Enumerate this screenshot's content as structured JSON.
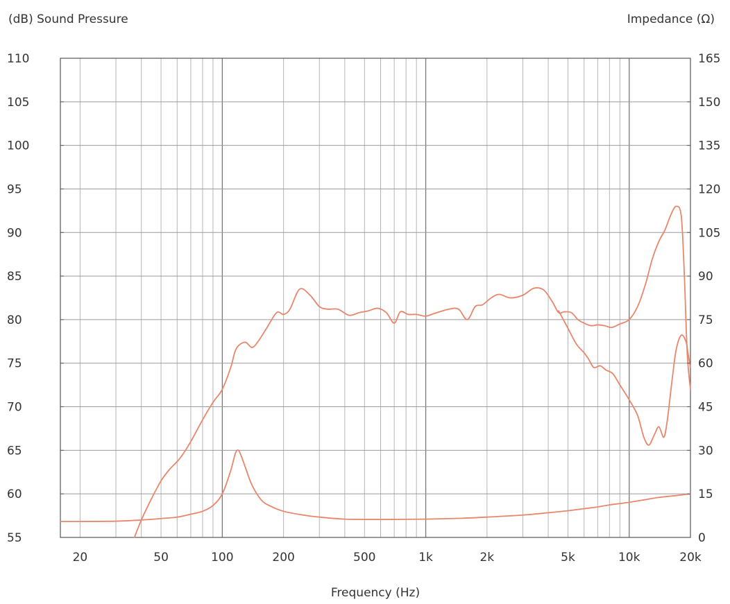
{
  "chart_data": {
    "type": "line",
    "title": "",
    "xlabel": "Frequency (Hz)",
    "ylabel_left": "(dB) Sound Pressure",
    "ylabel_right": "Impedance (Ω)",
    "x_scale": "log",
    "xlim": [
      16,
      20000
    ],
    "ylim_left": [
      55,
      110
    ],
    "ylim_right": [
      0,
      165
    ],
    "grid": true,
    "x_ticks": [
      {
        "value": 20,
        "label": "20"
      },
      {
        "value": 50,
        "label": "50"
      },
      {
        "value": 100,
        "label": "100"
      },
      {
        "value": 200,
        "label": "200"
      },
      {
        "value": 500,
        "label": "500"
      },
      {
        "value": 1000,
        "label": "1k"
      },
      {
        "value": 2000,
        "label": "2k"
      },
      {
        "value": 5000,
        "label": "5k"
      },
      {
        "value": 10000,
        "label": "10k"
      },
      {
        "value": 20000,
        "label": "20k"
      }
    ],
    "y_ticks_left": [
      {
        "value": 110,
        "label": "110"
      },
      {
        "value": 105,
        "label": "105"
      },
      {
        "value": 100,
        "label": "100"
      },
      {
        "value": 95,
        "label": "95"
      },
      {
        "value": 90,
        "label": "90"
      },
      {
        "value": 85,
        "label": "85"
      },
      {
        "value": 80,
        "label": "80"
      },
      {
        "value": 75,
        "label": "75"
      },
      {
        "value": 70,
        "label": "70"
      },
      {
        "value": 65,
        "label": "65"
      },
      {
        "value": 60,
        "label": "60"
      },
      {
        "value": 55,
        "label": "55"
      }
    ],
    "y_ticks_right": [
      {
        "value": 165,
        "label": "165"
      },
      {
        "value": 150,
        "label": "150"
      },
      {
        "value": 135,
        "label": "135"
      },
      {
        "value": 120,
        "label": "120"
      },
      {
        "value": 105,
        "label": "105"
      },
      {
        "value": 90,
        "label": "90"
      },
      {
        "value": 75,
        "label": "75"
      },
      {
        "value": 60,
        "label": "60"
      },
      {
        "value": 45,
        "label": "45"
      },
      {
        "value": 30,
        "label": "30"
      },
      {
        "value": 15,
        "label": "15"
      },
      {
        "value": 0,
        "label": "0"
      }
    ],
    "line_color": "#e8866b",
    "series": [
      {
        "axis": "left",
        "points": [
          [
            37,
            55
          ],
          [
            40,
            57
          ],
          [
            45,
            59.5
          ],
          [
            50,
            61.5
          ],
          [
            55,
            62.8
          ],
          [
            62,
            64.1
          ],
          [
            70,
            66
          ],
          [
            80,
            68.5
          ],
          [
            90,
            70.5
          ],
          [
            100,
            72
          ],
          [
            110,
            74.5
          ],
          [
            115,
            76.2
          ],
          [
            120,
            77
          ],
          [
            130,
            77.4
          ],
          [
            140,
            76.8
          ],
          [
            150,
            77.5
          ],
          [
            165,
            79
          ],
          [
            185,
            80.8
          ],
          [
            200,
            80.6
          ],
          [
            215,
            81.2
          ],
          [
            240,
            83.5
          ],
          [
            270,
            82.8
          ],
          [
            300,
            81.5
          ],
          [
            330,
            81.2
          ],
          [
            370,
            81.2
          ],
          [
            420,
            80.5
          ],
          [
            470,
            80.8
          ],
          [
            520,
            81
          ],
          [
            580,
            81.3
          ],
          [
            640,
            80.8
          ],
          [
            700,
            79.6
          ],
          [
            750,
            80.9
          ],
          [
            820,
            80.6
          ],
          [
            900,
            80.6
          ],
          [
            1000,
            80.4
          ],
          [
            1100,
            80.7
          ],
          [
            1300,
            81.2
          ],
          [
            1450,
            81.2
          ],
          [
            1600,
            80
          ],
          [
            1750,
            81.5
          ],
          [
            1900,
            81.7
          ],
          [
            2100,
            82.5
          ],
          [
            2300,
            82.9
          ],
          [
            2600,
            82.5
          ],
          [
            3000,
            82.8
          ],
          [
            3400,
            83.6
          ],
          [
            3800,
            83.4
          ],
          [
            4200,
            82
          ],
          [
            4500,
            80.8
          ],
          [
            4800,
            80.9
          ],
          [
            5200,
            80.8
          ],
          [
            5600,
            80
          ],
          [
            6000,
            79.6
          ],
          [
            6500,
            79.3
          ],
          [
            7000,
            79.4
          ],
          [
            7600,
            79.3
          ],
          [
            8200,
            79.1
          ],
          [
            9000,
            79.5
          ],
          [
            10000,
            80
          ],
          [
            11000,
            81.5
          ],
          [
            12000,
            84
          ],
          [
            13000,
            87
          ],
          [
            14000,
            89
          ],
          [
            15000,
            90.3
          ],
          [
            16000,
            92
          ],
          [
            17000,
            93
          ],
          [
            18000,
            92
          ],
          [
            18600,
            86
          ],
          [
            19300,
            76
          ],
          [
            20000,
            72
          ]
        ]
      },
      {
        "axis": "left",
        "points": [
          [
            4500,
            81
          ],
          [
            5000,
            79
          ],
          [
            5500,
            77.2
          ],
          [
            6000,
            76.2
          ],
          [
            6300,
            75.5
          ],
          [
            6700,
            74.5
          ],
          [
            7200,
            74.7
          ],
          [
            7700,
            74.2
          ],
          [
            8300,
            73.8
          ],
          [
            9000,
            72.5
          ],
          [
            10000,
            70.8
          ],
          [
            11000,
            69
          ],
          [
            11800,
            66.5
          ],
          [
            12500,
            65.6
          ],
          [
            13300,
            66.8
          ],
          [
            14000,
            67.7
          ],
          [
            14800,
            66.5
          ],
          [
            15400,
            68.5
          ],
          [
            16200,
            72.8
          ],
          [
            17000,
            76.5
          ],
          [
            18000,
            78.2
          ],
          [
            19000,
            77.5
          ],
          [
            19500,
            76
          ],
          [
            20000,
            74.5
          ]
        ]
      },
      {
        "axis": "right",
        "points": [
          [
            16,
            5.5
          ],
          [
            20,
            5.5
          ],
          [
            30,
            5.6
          ],
          [
            40,
            6
          ],
          [
            50,
            6.5
          ],
          [
            60,
            7
          ],
          [
            70,
            8
          ],
          [
            80,
            9
          ],
          [
            90,
            11
          ],
          [
            100,
            15
          ],
          [
            110,
            23
          ],
          [
            116,
            29
          ],
          [
            120,
            30
          ],
          [
            124,
            28
          ],
          [
            130,
            24
          ],
          [
            140,
            18
          ],
          [
            155,
            13
          ],
          [
            170,
            11
          ],
          [
            200,
            9
          ],
          [
            250,
            7.7
          ],
          [
            300,
            7
          ],
          [
            400,
            6.3
          ],
          [
            500,
            6.2
          ],
          [
            700,
            6.2
          ],
          [
            1000,
            6.3
          ],
          [
            1500,
            6.6
          ],
          [
            2000,
            7
          ],
          [
            3000,
            7.7
          ],
          [
            4000,
            8.5
          ],
          [
            5000,
            9.2
          ],
          [
            6000,
            9.9
          ],
          [
            7000,
            10.5
          ],
          [
            8000,
            11.2
          ],
          [
            10000,
            12.1
          ],
          [
            12000,
            13
          ],
          [
            14000,
            13.8
          ],
          [
            17000,
            14.4
          ],
          [
            20000,
            15
          ]
        ]
      }
    ]
  }
}
